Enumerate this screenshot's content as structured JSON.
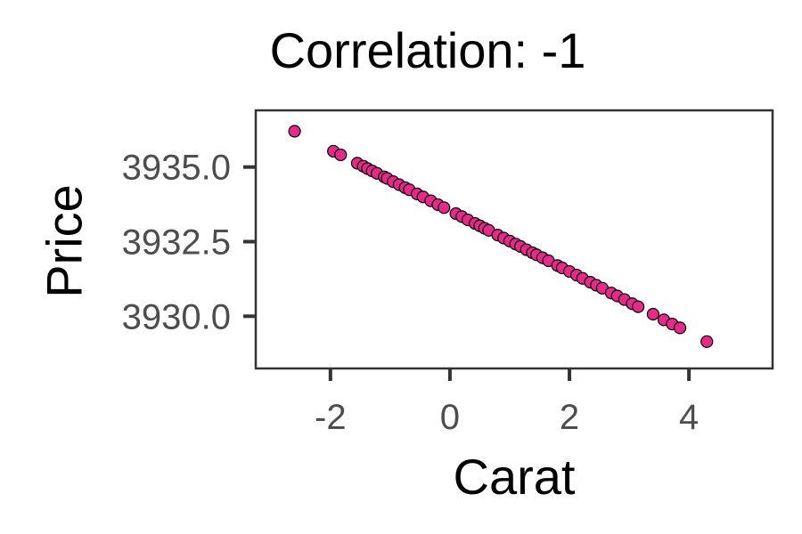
{
  "chart_data": {
    "type": "scatter",
    "title": "Correlation: -1",
    "xlabel": "Carat",
    "ylabel": "Price",
    "xlim": [
      -3.25,
      5.4
    ],
    "ylim": [
      3928.25,
      3936.9
    ],
    "x_ticks": [
      -2,
      0,
      2,
      4
    ],
    "x_tick_labels": [
      "-2",
      "0",
      "2",
      "4"
    ],
    "y_ticks": [
      3930.0,
      3932.5,
      3935.0
    ],
    "y_tick_labels": [
      "3930.0",
      "3932.5",
      "3935.0"
    ],
    "grid": false,
    "legend": "none",
    "point_color": "#e7298a",
    "point_outline_color": "#000000",
    "series": [
      {
        "points": [
          [
            -2.6,
            3936.2
          ],
          [
            -1.95,
            3935.53
          ],
          [
            -1.83,
            3935.41
          ],
          [
            -1.55,
            3935.13
          ],
          [
            -1.45,
            3935.03
          ],
          [
            -1.38,
            3934.95
          ],
          [
            -1.3,
            3934.87
          ],
          [
            -1.22,
            3934.79
          ],
          [
            -1.1,
            3934.67
          ],
          [
            -1.05,
            3934.62
          ],
          [
            -0.95,
            3934.51
          ],
          [
            -0.85,
            3934.41
          ],
          [
            -0.75,
            3934.31
          ],
          [
            -0.68,
            3934.24
          ],
          [
            -0.55,
            3934.1
          ],
          [
            -0.45,
            3934.0
          ],
          [
            -0.32,
            3933.87
          ],
          [
            -0.2,
            3933.74
          ],
          [
            -0.1,
            3933.64
          ],
          [
            0.1,
            3933.44
          ],
          [
            0.2,
            3933.34
          ],
          [
            0.3,
            3933.23
          ],
          [
            0.42,
            3933.11
          ],
          [
            0.5,
            3933.03
          ],
          [
            0.58,
            3932.95
          ],
          [
            0.65,
            3932.88
          ],
          [
            0.8,
            3932.72
          ],
          [
            0.9,
            3932.62
          ],
          [
            1.0,
            3932.52
          ],
          [
            1.1,
            3932.42
          ],
          [
            1.18,
            3932.34
          ],
          [
            1.28,
            3932.23
          ],
          [
            1.38,
            3932.13
          ],
          [
            1.45,
            3932.06
          ],
          [
            1.55,
            3931.96
          ],
          [
            1.65,
            3931.86
          ],
          [
            1.8,
            3931.7
          ],
          [
            1.88,
            3931.62
          ],
          [
            2.0,
            3931.5
          ],
          [
            2.12,
            3931.38
          ],
          [
            2.22,
            3931.27
          ],
          [
            2.35,
            3931.14
          ],
          [
            2.45,
            3931.04
          ],
          [
            2.55,
            3930.94
          ],
          [
            2.7,
            3930.78
          ],
          [
            2.8,
            3930.68
          ],
          [
            2.92,
            3930.56
          ],
          [
            3.05,
            3930.42
          ],
          [
            3.15,
            3930.32
          ],
          [
            3.4,
            3930.07
          ],
          [
            3.58,
            3929.88
          ],
          [
            3.72,
            3929.74
          ],
          [
            3.85,
            3929.61
          ],
          [
            4.3,
            3929.15
          ]
        ]
      }
    ]
  }
}
